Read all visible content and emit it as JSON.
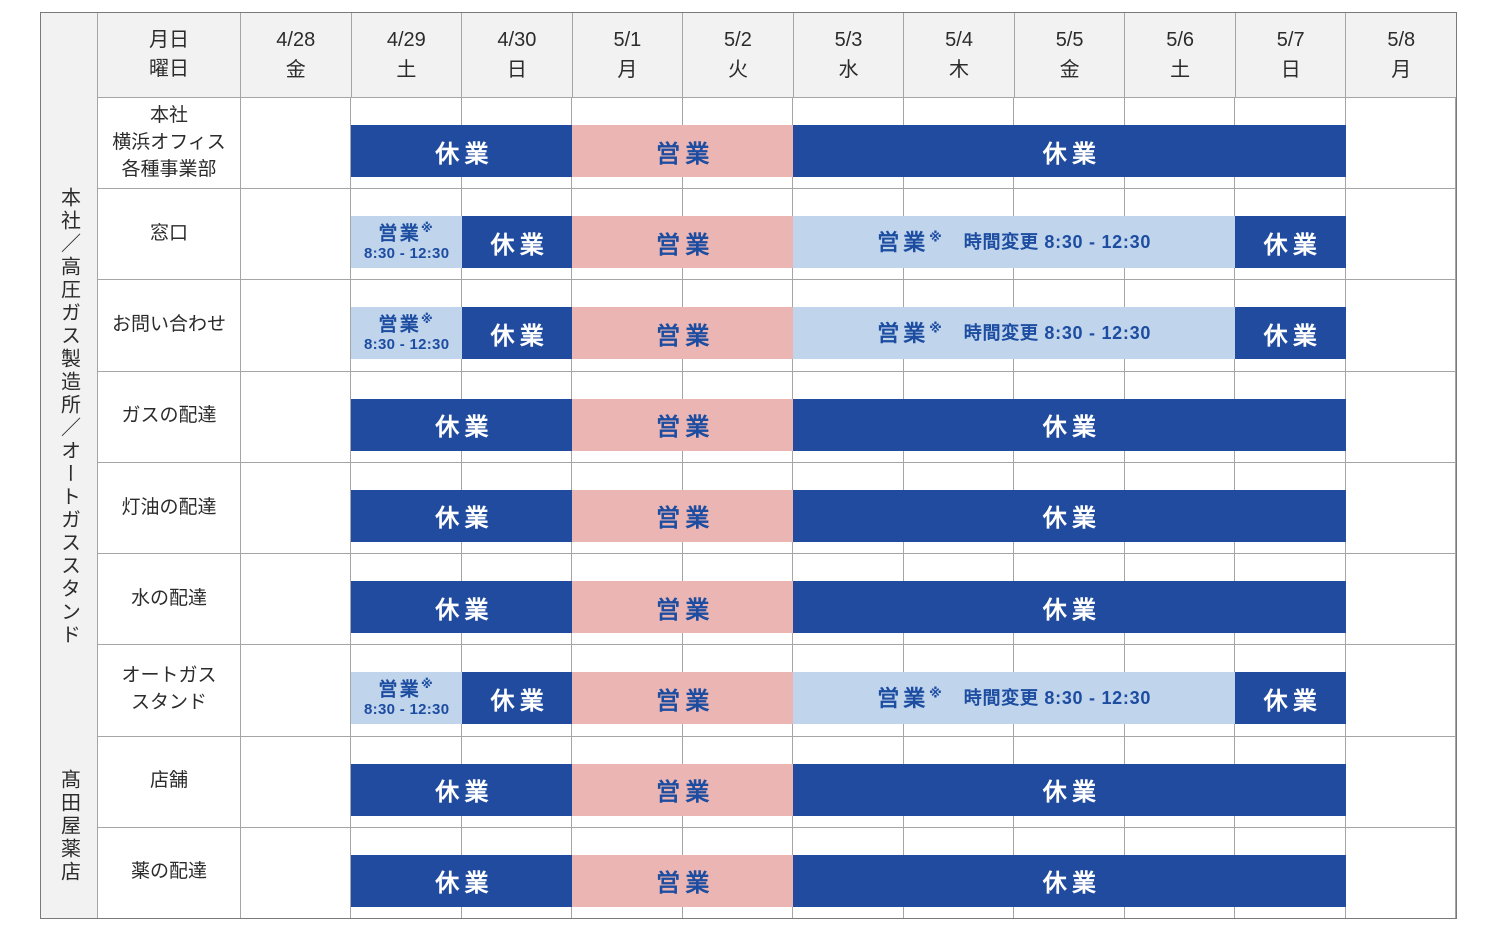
{
  "colors": {
    "closed_bar": "#214b9f",
    "open_bar": "#eab5b3",
    "changed_bar": "#c0d4ec",
    "bar_text_blue": "#1d4da1",
    "header_bg": "#f2f2f3",
    "grid_line": "#a5a5a5",
    "outer_border": "#7a7a7a",
    "text_dark": "#2b2b2b"
  },
  "header": {
    "corner": [
      "月日",
      "曜日"
    ],
    "days": [
      {
        "date": "4/28",
        "dow": "金"
      },
      {
        "date": "4/29",
        "dow": "土"
      },
      {
        "date": "4/30",
        "dow": "日"
      },
      {
        "date": "5/1",
        "dow": "月"
      },
      {
        "date": "5/2",
        "dow": "火"
      },
      {
        "date": "5/3",
        "dow": "水"
      },
      {
        "date": "5/4",
        "dow": "木"
      },
      {
        "date": "5/5",
        "dow": "金"
      },
      {
        "date": "5/6",
        "dow": "土"
      },
      {
        "date": "5/7",
        "dow": "日"
      },
      {
        "date": "5/8",
        "dow": "月"
      }
    ]
  },
  "sections": [
    {
      "label": "本社／高圧ガス製造所／オートガススタンド",
      "row_span": 7
    },
    {
      "label": "髙田屋薬店",
      "row_span": 2
    }
  ],
  "rows": [
    {
      "label": [
        "本社",
        "横浜オフィス",
        "各種事業部"
      ],
      "segments": [
        {
          "type": "closed",
          "start": 1,
          "span": 2,
          "text": "休業"
        },
        {
          "type": "open",
          "start": 3,
          "span": 2,
          "text": "営業"
        },
        {
          "type": "closed",
          "start": 5,
          "span": 5,
          "text": "休業"
        }
      ]
    },
    {
      "label": [
        "窓口"
      ],
      "segments": [
        {
          "type": "open_short",
          "start": 1,
          "span": 1,
          "line1": "営業",
          "mark": "※",
          "line2": "8:30 - 12:30"
        },
        {
          "type": "closed",
          "start": 2,
          "span": 1,
          "text": "休業"
        },
        {
          "type": "open",
          "start": 3,
          "span": 2,
          "text": "営業"
        },
        {
          "type": "open_changed",
          "start": 5,
          "span": 4,
          "line1": "営業",
          "mark": "※",
          "note": "時間変更 8:30 - 12:30"
        },
        {
          "type": "closed",
          "start": 9,
          "span": 1,
          "text": "休業"
        }
      ]
    },
    {
      "label": [
        "お問い合わせ"
      ],
      "segments": [
        {
          "type": "open_short",
          "start": 1,
          "span": 1,
          "line1": "営業",
          "mark": "※",
          "line2": "8:30 - 12:30"
        },
        {
          "type": "closed",
          "start": 2,
          "span": 1,
          "text": "休業"
        },
        {
          "type": "open",
          "start": 3,
          "span": 2,
          "text": "営業"
        },
        {
          "type": "open_changed",
          "start": 5,
          "span": 4,
          "line1": "営業",
          "mark": "※",
          "note": "時間変更 8:30 - 12:30"
        },
        {
          "type": "closed",
          "start": 9,
          "span": 1,
          "text": "休業"
        }
      ]
    },
    {
      "label": [
        "ガスの配達"
      ],
      "segments": [
        {
          "type": "closed",
          "start": 1,
          "span": 2,
          "text": "休業"
        },
        {
          "type": "open",
          "start": 3,
          "span": 2,
          "text": "営業"
        },
        {
          "type": "closed",
          "start": 5,
          "span": 5,
          "text": "休業"
        }
      ]
    },
    {
      "label": [
        "灯油の配達"
      ],
      "segments": [
        {
          "type": "closed",
          "start": 1,
          "span": 2,
          "text": "休業"
        },
        {
          "type": "open",
          "start": 3,
          "span": 2,
          "text": "営業"
        },
        {
          "type": "closed",
          "start": 5,
          "span": 5,
          "text": "休業"
        }
      ]
    },
    {
      "label": [
        "水の配達"
      ],
      "segments": [
        {
          "type": "closed",
          "start": 1,
          "span": 2,
          "text": "休業"
        },
        {
          "type": "open",
          "start": 3,
          "span": 2,
          "text": "営業"
        },
        {
          "type": "closed",
          "start": 5,
          "span": 5,
          "text": "休業"
        }
      ]
    },
    {
      "label": [
        "オートガス",
        "スタンド"
      ],
      "segments": [
        {
          "type": "open_short",
          "start": 1,
          "span": 1,
          "line1": "営業",
          "mark": "※",
          "line2": "8:30 - 12:30"
        },
        {
          "type": "closed",
          "start": 2,
          "span": 1,
          "text": "休業"
        },
        {
          "type": "open",
          "start": 3,
          "span": 2,
          "text": "営業"
        },
        {
          "type": "open_changed",
          "start": 5,
          "span": 4,
          "line1": "営業",
          "mark": "※",
          "note": "時間変更 8:30 - 12:30"
        },
        {
          "type": "closed",
          "start": 9,
          "span": 1,
          "text": "休業"
        }
      ]
    },
    {
      "label": [
        "店舗"
      ],
      "segments": [
        {
          "type": "closed",
          "start": 1,
          "span": 2,
          "text": "休業"
        },
        {
          "type": "open",
          "start": 3,
          "span": 2,
          "text": "営業"
        },
        {
          "type": "closed",
          "start": 5,
          "span": 5,
          "text": "休業"
        }
      ]
    },
    {
      "label": [
        "薬の配達"
      ],
      "segments": [
        {
          "type": "closed",
          "start": 1,
          "span": 2,
          "text": "休業"
        },
        {
          "type": "open",
          "start": 3,
          "span": 2,
          "text": "営業"
        },
        {
          "type": "closed",
          "start": 5,
          "span": 5,
          "text": "休業"
        }
      ]
    }
  ]
}
